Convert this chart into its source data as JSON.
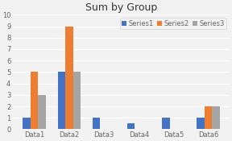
{
  "title": "Sum by Group",
  "categories": [
    "Data1",
    "Data2",
    "Data3",
    "Data4",
    "Data5",
    "Data6"
  ],
  "series": {
    "Series1": [
      1,
      5,
      1,
      0.5,
      1,
      1
    ],
    "Series2": [
      5,
      9,
      0,
      0,
      0,
      2
    ],
    "Series3": [
      3,
      5,
      0,
      0,
      0,
      2
    ]
  },
  "series_colors": {
    "Series1": "#4472c4",
    "Series2": "#ed7d31",
    "Series3": "#a5a5a5"
  },
  "ylim": [
    0,
    10
  ],
  "yticks": [
    0,
    1,
    2,
    3,
    4,
    5,
    6,
    7,
    8,
    9,
    10
  ],
  "background_color": "#f2f2f2",
  "plot_bg_color": "#f2f2f2",
  "title_fontsize": 9,
  "tick_fontsize": 6,
  "legend_fontsize": 6
}
